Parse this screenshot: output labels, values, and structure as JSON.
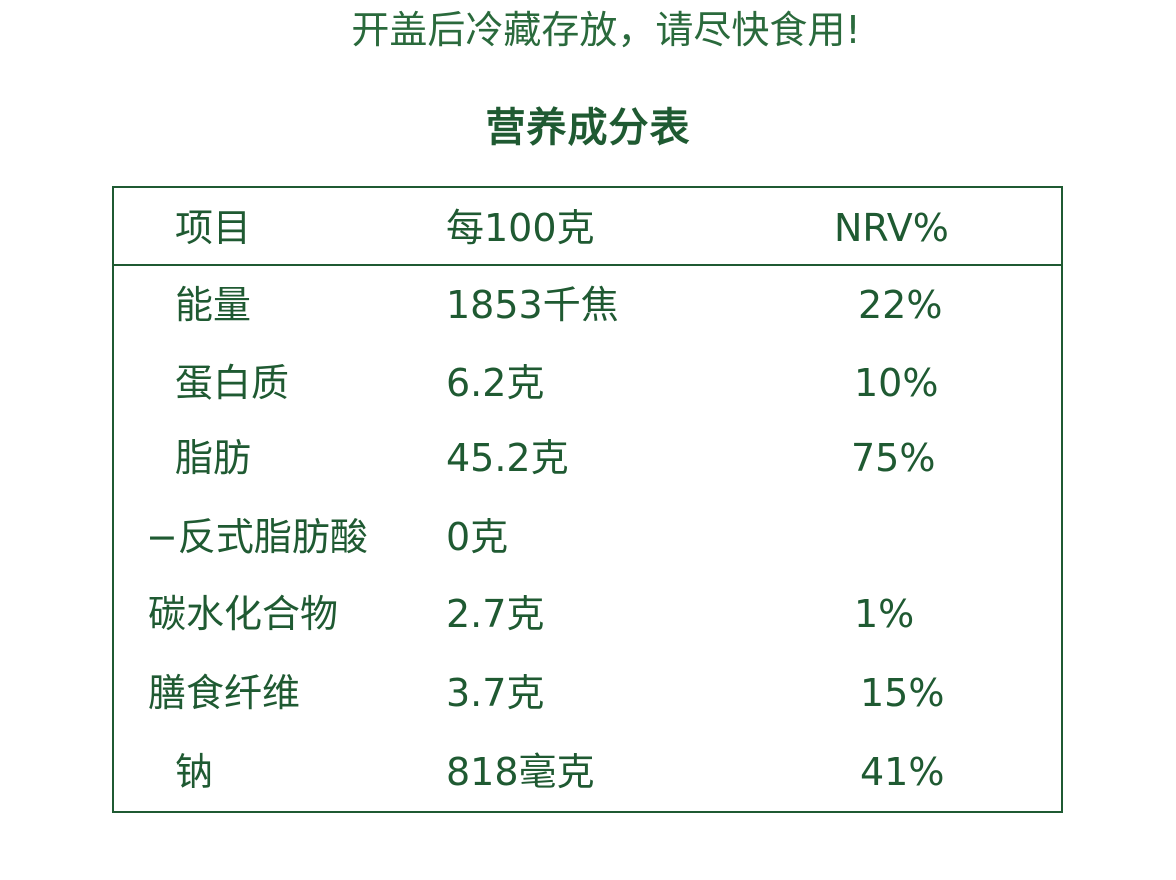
{
  "notice": "开盖后冷藏存放，请尽快食用!",
  "title": "营养成分表",
  "table": {
    "headers": [
      "项目",
      "每100克",
      "NRV%"
    ],
    "rows": [
      {
        "item": "能量",
        "amount": "1853千焦",
        "nrv": "22%"
      },
      {
        "item": "蛋白质",
        "amount": "6.2克",
        "nrv": "10%"
      },
      {
        "item": "脂肪",
        "amount": "45.2克",
        "nrv": "75%"
      },
      {
        "item": "−反式脂肪酸",
        "amount": "0克",
        "nrv": ""
      },
      {
        "item": "碳水化合物",
        "amount": "2.7克",
        "nrv": "1%"
      },
      {
        "item": "膳食纤维",
        "amount": "3.7克",
        "nrv": "15%"
      },
      {
        "item": "钠",
        "amount": "818毫克",
        "nrv": "41%"
      }
    ]
  },
  "colors": {
    "text": "#1f5a32",
    "border": "#1f5a32",
    "background": "#ffffff"
  }
}
